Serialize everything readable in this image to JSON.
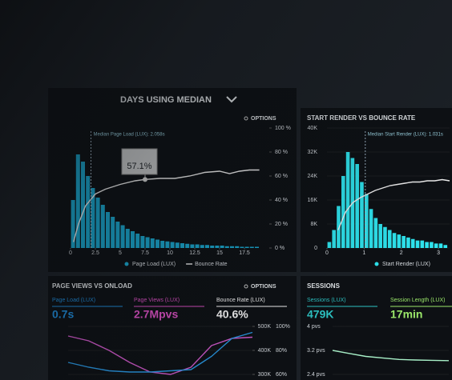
{
  "chart_data": [
    {
      "type": "bar",
      "title": "DAYS USING MEDIAN",
      "options": "OPTIONS",
      "xlim": [
        0,
        20
      ],
      "xticks": [
        0,
        2.5,
        5,
        7.5,
        10,
        12.5,
        15,
        17.5
      ],
      "ylim": [
        0,
        100
      ],
      "y2lim": [
        0,
        100
      ],
      "y2ticks": [
        {
          "value": 0,
          "label": "0 %"
        },
        {
          "value": 20,
          "label": "20 %"
        },
        {
          "value": 40,
          "label": "40 %"
        },
        {
          "value": 60,
          "label": "60 %"
        },
        {
          "value": 80,
          "label": "80 %"
        },
        {
          "value": 100,
          "label": "100 %"
        }
      ],
      "median": {
        "value": 2.058,
        "label": "Median Page Load (LUX): 2.058s"
      },
      "tooltip": {
        "x": 7.5,
        "value": 57.1,
        "label": "57.1%"
      },
      "series": [
        {
          "name": "Page Load (LUX)",
          "color": "#19a9d1",
          "bins": [
            0,
            0.5,
            1,
            1.5,
            2,
            2.5,
            3,
            3.5,
            4,
            4.5,
            5,
            5.5,
            6,
            6.5,
            7,
            7.5,
            8,
            8.5,
            9,
            9.5,
            10,
            10.5,
            11,
            11.5,
            12,
            12.5,
            13,
            13.5,
            14,
            14.5,
            15,
            15.5,
            16,
            16.5,
            17,
            17.5,
            18,
            18.5,
            19
          ],
          "counts": [
            40,
            78,
            72,
            60,
            50,
            42,
            36,
            30,
            26,
            22,
            19,
            16,
            14,
            12,
            10,
            9,
            8,
            7,
            6,
            5.5,
            5,
            4.5,
            4,
            3.5,
            3,
            3,
            2.5,
            2.5,
            2,
            2,
            2,
            1.5,
            1.5,
            1.5,
            1,
            1,
            1,
            1
          ]
        },
        {
          "name": "Bounce Rate",
          "color": "#f2f2f2",
          "axis": "y2",
          "x": [
            0.3,
            0.8,
            1.5,
            2.5,
            3.5,
            5,
            6.5,
            7.5,
            9,
            10.5,
            12,
            13.5,
            15,
            16,
            17,
            18,
            19
          ],
          "values": [
            5,
            20,
            35,
            45,
            49,
            53,
            56,
            57.1,
            58,
            58,
            60,
            63,
            64,
            62,
            64,
            65,
            65
          ]
        }
      ]
    },
    {
      "type": "bar",
      "title": "START RENDER VS BOUNCE RATE",
      "xlim": [
        0,
        3.3
      ],
      "xticks": [
        0,
        1,
        2,
        3
      ],
      "ylim": [
        0,
        40000
      ],
      "yticks": [
        0,
        {
          "value": 8000,
          "label": "8K"
        },
        {
          "value": 16000,
          "label": "16K"
        },
        {
          "value": 24000,
          "label": "24K"
        },
        {
          "value": 32000,
          "label": "32K"
        },
        {
          "value": 40000,
          "label": "40K"
        }
      ],
      "y2lim": [
        0,
        100
      ],
      "median": {
        "value": 1.031,
        "label": "Median Start Render (LUX): 1.031s"
      },
      "series": [
        {
          "name": "Start Render (LUX)",
          "color": "#2ee6f0",
          "bins": [
            0,
            0.125,
            0.25,
            0.375,
            0.5,
            0.625,
            0.75,
            0.875,
            1,
            1.125,
            1.25,
            1.375,
            1.5,
            1.625,
            1.75,
            1.875,
            2,
            2.125,
            2.25,
            2.375,
            2.5,
            2.625,
            2.75,
            2.875,
            3,
            3.125,
            3.25
          ],
          "counts": [
            2000,
            6000,
            14000,
            24000,
            32000,
            30000,
            28000,
            22000,
            18000,
            13000,
            10000,
            8000,
            7000,
            6000,
            5000,
            4500,
            4000,
            3500,
            3000,
            2500,
            2500,
            2000,
            2000,
            1500,
            1500,
            1000
          ]
        },
        {
          "color": "#f2f2f2",
          "axis": "y2",
          "x": [
            0.3,
            0.5,
            0.7,
            0.9,
            1.1,
            1.3,
            1.5,
            1.7,
            1.9,
            2.1,
            2.3,
            2.5,
            2.7,
            2.9,
            3.1,
            3.3
          ],
          "values": [
            15,
            30,
            38,
            42,
            45,
            48,
            50,
            52,
            53,
            54,
            55,
            55,
            56,
            56,
            57,
            56
          ]
        }
      ]
    },
    {
      "type": "line",
      "title": "PAGE VIEWS VS ONLOAD",
      "options": "OPTIONS",
      "metrics": [
        {
          "label": "Page Load (LUX)",
          "value": "0.7s",
          "color": "#1f8fe0"
        },
        {
          "label": "Page Views (LUX)",
          "value": "2.7Mpvs",
          "color": "#e052c8"
        },
        {
          "label": "Bounce Rate (LUX)",
          "value": "40.6%",
          "color": "#ffffff"
        }
      ],
      "categories": [
        null,
        null,
        null,
        null,
        null,
        null,
        null,
        null,
        null,
        null
      ],
      "ylim": [
        300000,
        500000
      ],
      "yticks": [
        {
          "value": 300000,
          "label": "300K"
        },
        {
          "value": 400000,
          "label": "400K"
        },
        {
          "value": 500000,
          "label": "500K"
        }
      ],
      "y2lim": [
        60,
        100
      ],
      "y2ticks": [
        {
          "value": 60,
          "label": "60%"
        },
        {
          "value": 80,
          "label": "80%"
        },
        {
          "value": 100,
          "label": "100%"
        }
      ],
      "series": [
        {
          "color": "#d65bd0",
          "values": [
            460000,
            440000,
            400000,
            350000,
            310000,
            300000,
            330000,
            420000,
            450000,
            455000
          ]
        },
        {
          "color": "#2a9be8",
          "axis": "y2",
          "values": [
            70,
            66,
            63,
            62,
            62,
            63,
            64,
            75,
            90,
            95
          ]
        }
      ]
    },
    {
      "type": "line",
      "title": "SESSIONS",
      "metrics": [
        {
          "label": "Sessions (LUX)",
          "value": "479K",
          "color": "#2ec9c9"
        },
        {
          "label": "Session Length (LUX)",
          "value": "17min",
          "color": "#9be86a"
        }
      ],
      "categories": [
        null,
        null,
        null,
        null,
        null,
        null,
        null,
        null
      ],
      "ylim": [
        2.4,
        4
      ],
      "yticks": [
        {
          "value": 2.4,
          "label": "2.4 pvs"
        },
        {
          "value": 3.2,
          "label": "3.2 pvs"
        },
        {
          "value": 4,
          "label": "4 pvs"
        }
      ],
      "series": [
        {
          "color": "#a8f0c8",
          "values": [
            3.2,
            3.1,
            3.0,
            2.95,
            2.9,
            2.88,
            2.87,
            2.86
          ]
        }
      ]
    }
  ]
}
